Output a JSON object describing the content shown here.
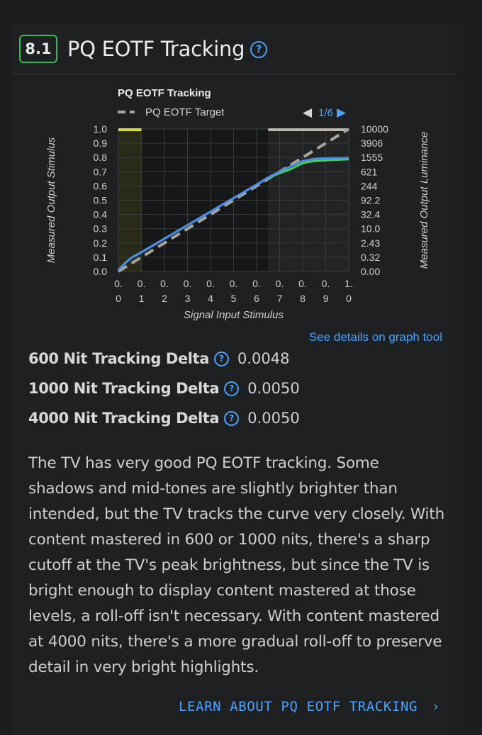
{
  "section": {
    "score": "8.1",
    "title": "PQ EOTF Tracking",
    "help_glyph": "?"
  },
  "chart_data": {
    "type": "line",
    "title": "PQ EOTF Tracking",
    "legend": {
      "label": "PQ EOTF Target",
      "placement": "top-left"
    },
    "pager": {
      "text": "1/6",
      "prev_glyph": "◀",
      "next_glyph": "▶"
    },
    "xlabel": "Signal Input Stimulus",
    "ylabel_left": "Measured Output Stimulus",
    "ylabel_right": "Measured Output Luminance",
    "xlim": [
      0,
      1
    ],
    "ylim": [
      0,
      1
    ],
    "grid": true,
    "x_ticks_top": [
      "0.",
      "0.",
      "0.",
      "0.",
      "0.",
      "0.",
      "0.",
      "0.",
      "0.",
      "0.",
      "1."
    ],
    "x_ticks_bottom": [
      "0",
      "1",
      "2",
      "3",
      "4",
      "5",
      "6",
      "7",
      "8",
      "9",
      "0"
    ],
    "y_ticks_left": [
      "0.0",
      "0.1",
      "0.2",
      "0.3",
      "0.4",
      "0.5",
      "0.6",
      "0.7",
      "0.8",
      "0.9",
      "1.0"
    ],
    "y_ticks_right": [
      "0.00",
      "0.32",
      "2.43",
      "10.0",
      "32.4",
      "92.2",
      "244",
      "621",
      "1555",
      "3906",
      "10000"
    ],
    "shaded_regions": [
      [
        0,
        0.1
      ],
      [
        0.65,
        1.0
      ]
    ],
    "top_markers": [
      {
        "from": 0,
        "to": 0.1,
        "color": "#d9e021"
      },
      {
        "from": 0.65,
        "to": 1.0,
        "color": "#bdb6a9"
      }
    ],
    "series": [
      {
        "name": "PQ EOTF Target",
        "color": "#a9a39a",
        "dashed": true,
        "x": [
          0,
          1
        ],
        "y": [
          0,
          1
        ]
      },
      {
        "color": "#4bd24b",
        "dashed": false,
        "x": [
          0,
          0.03,
          0.06,
          0.1,
          0.2,
          0.3,
          0.4,
          0.5,
          0.6,
          0.65,
          0.7,
          0.75,
          0.8,
          0.85,
          0.9,
          1.0
        ],
        "y": [
          0.01,
          0.06,
          0.1,
          0.135,
          0.23,
          0.325,
          0.42,
          0.515,
          0.61,
          0.655,
          0.69,
          0.72,
          0.76,
          0.775,
          0.78,
          0.787
        ]
      },
      {
        "color": "#4a8df0",
        "dashed": false,
        "x": [
          0,
          0.03,
          0.06,
          0.1,
          0.2,
          0.3,
          0.4,
          0.5,
          0.6,
          0.65,
          0.7,
          0.75,
          0.8,
          0.85,
          0.9,
          1.0
        ],
        "y": [
          0.01,
          0.06,
          0.1,
          0.135,
          0.23,
          0.325,
          0.42,
          0.515,
          0.61,
          0.66,
          0.7,
          0.74,
          0.775,
          0.79,
          0.795,
          0.797
        ]
      }
    ]
  },
  "graph_link": "See details on graph tool",
  "deltas": [
    {
      "label": "600 Nit Tracking Delta",
      "value": "0.0048"
    },
    {
      "label": "1000 Nit Tracking Delta",
      "value": "0.0050"
    },
    {
      "label": "4000 Nit Tracking Delta",
      "value": "0.0050"
    }
  ],
  "description": "The TV has very good PQ EOTF tracking. Some shadows and mid-tones are slightly brighter than intended, but the TV tracks the curve very closely. With content mastered in 600 or 1000 nits, there's a sharp cutoff at the TV's peak brightness, but since the TV is bright enough to display content mastered at those levels, a roll-off isn't necessary. With content mastered at 4000 nits, there's a more gradual roll-off to preserve detail in very bright highlights.",
  "learn_more": "LEARN ABOUT PQ EOTF TRACKING",
  "learn_more_glyph": "›"
}
